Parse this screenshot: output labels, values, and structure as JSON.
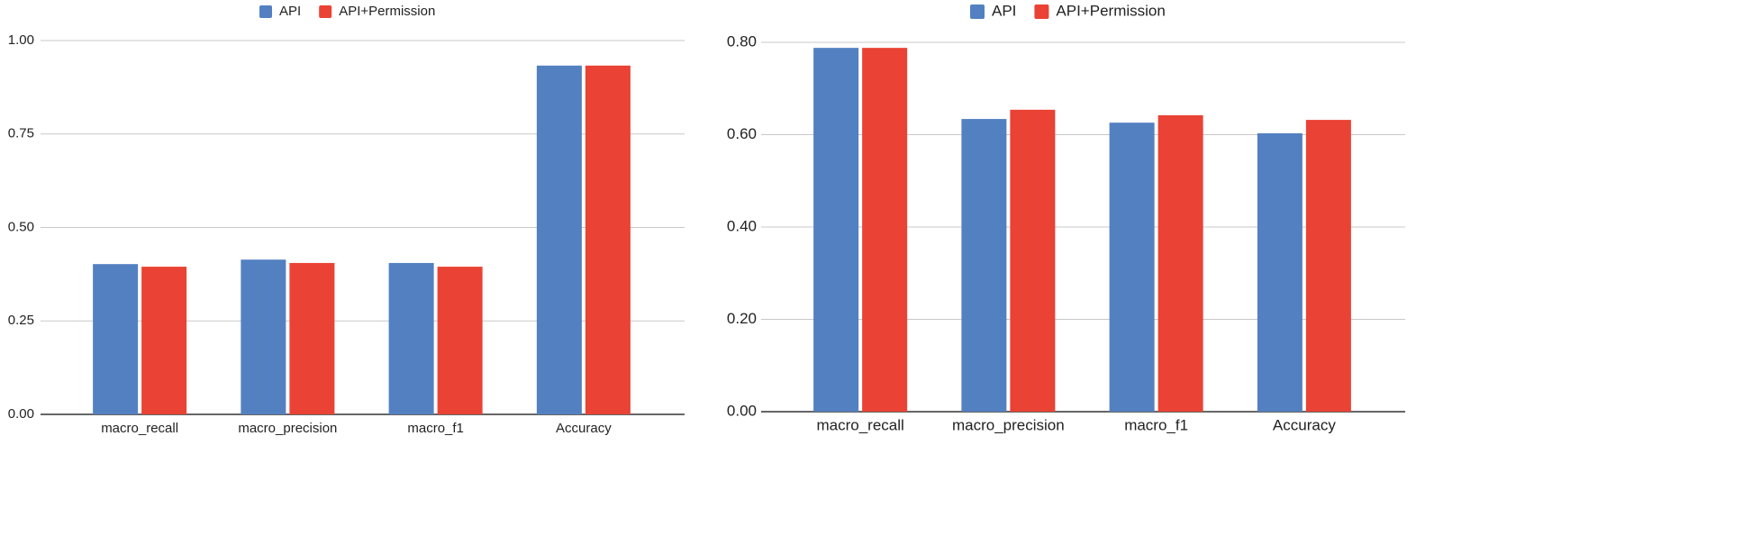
{
  "chart_data": [
    {
      "type": "bar",
      "categories": [
        "macro_recall",
        "macro_precision",
        "macro_f1",
        "Accuracy"
      ],
      "series": [
        {
          "name": "API",
          "color": "#5380c1",
          "values": [
            0.402,
            0.414,
            0.405,
            0.933
          ]
        },
        {
          "name": "API+Permission",
          "color": "#ea4234",
          "values": [
            0.395,
            0.405,
            0.395,
            0.933
          ]
        }
      ],
      "ylim": [
        0,
        1
      ],
      "yticks": [
        {
          "value": 0,
          "label": "0.00"
        },
        {
          "value": 0.25,
          "label": "0.25"
        },
        {
          "value": 0.5,
          "label": "0.50"
        },
        {
          "value": 0.75,
          "label": "0.75"
        },
        {
          "value": 1,
          "label": "1.00"
        }
      ],
      "grid": true,
      "legend": "top"
    },
    {
      "type": "bar",
      "categories": [
        "macro_recall",
        "macro_precision",
        "macro_f1",
        "Accuracy"
      ],
      "series": [
        {
          "name": "API",
          "color": "#5380c1",
          "values": [
            0.788,
            0.634,
            0.626,
            0.603
          ]
        },
        {
          "name": "API+Permission",
          "color": "#ea4234",
          "values": [
            0.788,
            0.654,
            0.642,
            0.632
          ]
        }
      ],
      "ylim": [
        0,
        0.8
      ],
      "yticks": [
        {
          "value": 0,
          "label": "0.00"
        },
        {
          "value": 0.2,
          "label": "0.20"
        },
        {
          "value": 0.4,
          "label": "0.40"
        },
        {
          "value": 0.6,
          "label": "0.60"
        },
        {
          "value": 0.8,
          "label": "0.80"
        }
      ],
      "grid": true,
      "legend": "top"
    }
  ]
}
